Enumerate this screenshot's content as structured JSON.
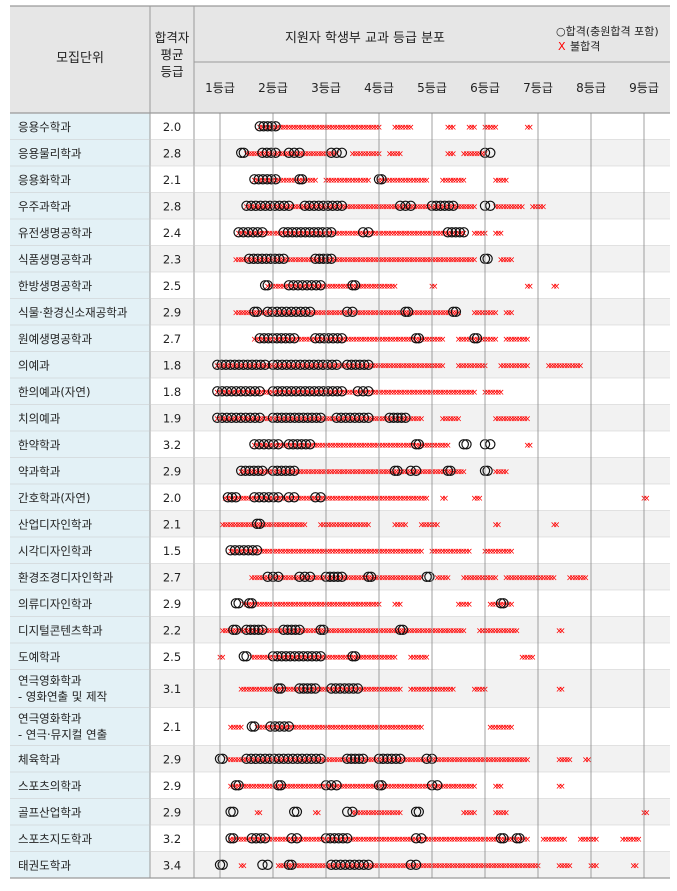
{
  "header": {
    "unit_label": "모집단위",
    "avg_label_lines": [
      "합격자",
      "평균",
      "등급"
    ],
    "chart_title": "지원자 학생부 교과 등급 분포",
    "legend_pass": "○합격(충원합격 포함)",
    "legend_fail_mark": "X",
    "legend_fail": "불합격"
  },
  "colors": {
    "header_bg": "#e6e6e6",
    "name_bg": "#e3f1f6",
    "row_alt_bg": "#f2f2f2",
    "border": "#9a9a9a",
    "fail": "#ff0000",
    "pass": "#111111"
  },
  "chart_data": {
    "type": "scatter",
    "title": "지원자 학생부 교과 등급 분포",
    "x_tick_labels": [
      "1등급",
      "2등급",
      "3등급",
      "4등급",
      "5등급",
      "6등급",
      "7등급",
      "8등급",
      "9등급"
    ],
    "xlim": [
      1,
      9
    ],
    "grid": true,
    "legend": "top-right",
    "series_names": [
      "합격(충원합격 포함)",
      "불합격"
    ],
    "rows": [
      {
        "name": [
          "응용수학과"
        ],
        "avg": "2.0",
        "pass": [
          [
            1.75,
            2.05
          ]
        ],
        "fail": [
          [
            1.75,
            4.0
          ],
          [
            4.3,
            4.6
          ],
          [
            5.3,
            5.4
          ],
          [
            5.7,
            5.8
          ],
          [
            6.0,
            6.2
          ],
          [
            6.8,
            6.85
          ]
        ]
      },
      {
        "name": [
          "응용물리학과"
        ],
        "avg": "2.8",
        "pass": [
          [
            1.4,
            1.45
          ],
          [
            1.8,
            2.05
          ],
          [
            2.3,
            2.5
          ],
          [
            3.1,
            3.3
          ],
          [
            6.0,
            6.1
          ]
        ],
        "fail": [
          [
            1.5,
            3.2
          ],
          [
            3.5,
            4.0
          ],
          [
            4.2,
            4.4
          ],
          [
            5.3,
            5.4
          ],
          [
            5.6,
            6.0
          ]
        ]
      },
      {
        "name": [
          "응용화학과"
        ],
        "avg": "2.1",
        "pass": [
          [
            1.65,
            2.05
          ],
          [
            2.5,
            2.55
          ],
          [
            4.0,
            4.05
          ]
        ],
        "fail": [
          [
            1.65,
            2.8
          ],
          [
            3.0,
            3.8
          ],
          [
            4.0,
            4.9
          ],
          [
            5.2,
            5.6
          ],
          [
            6.2,
            6.4
          ]
        ]
      },
      {
        "name": [
          "우주과학과"
        ],
        "avg": "2.8",
        "pass": [
          [
            1.5,
            2.3
          ],
          [
            2.6,
            3.3
          ],
          [
            4.4,
            4.6
          ],
          [
            5.0,
            5.4
          ],
          [
            6.0,
            6.1
          ]
        ],
        "fail": [
          [
            1.5,
            5.8
          ],
          [
            6.2,
            6.7
          ],
          [
            6.9,
            7.1
          ]
        ]
      },
      {
        "name": [
          "유전생명공학과"
        ],
        "avg": "2.4",
        "pass": [
          [
            1.35,
            1.8
          ],
          [
            2.2,
            3.1
          ],
          [
            3.7,
            3.8
          ],
          [
            5.3,
            5.6
          ]
        ],
        "fail": [
          [
            1.35,
            5.6
          ],
          [
            5.8,
            6.0
          ],
          [
            6.2,
            6.3
          ]
        ]
      },
      {
        "name": [
          "식품생명공학과"
        ],
        "avg": "2.3",
        "pass": [
          [
            1.55,
            2.2
          ],
          [
            2.8,
            3.1
          ],
          [
            6.0,
            6.05
          ]
        ],
        "fail": [
          [
            1.3,
            5.8
          ],
          [
            6.3,
            6.5
          ]
        ]
      },
      {
        "name": [
          "한방생명공학과"
        ],
        "avg": "2.5",
        "pass": [
          [
            1.85,
            1.9
          ],
          [
            2.3,
            2.9
          ],
          [
            3.5,
            3.55
          ]
        ],
        "fail": [
          [
            1.9,
            4.3
          ],
          [
            5.0,
            5.05
          ],
          [
            6.8,
            6.85
          ],
          [
            7.3,
            7.35
          ]
        ]
      },
      {
        "name": [
          "식물·환경신소재공학과"
        ],
        "avg": "2.9",
        "pass": [
          [
            1.65,
            1.7
          ],
          [
            1.9,
            2.7
          ],
          [
            3.4,
            3.5
          ],
          [
            4.5,
            4.55
          ],
          [
            5.4,
            5.45
          ]
        ],
        "fail": [
          [
            1.3,
            5.5
          ],
          [
            5.8,
            6.2
          ],
          [
            6.4,
            6.5
          ]
        ]
      },
      {
        "name": [
          "원예생명공학과"
        ],
        "avg": "2.7",
        "pass": [
          [
            1.75,
            2.4
          ],
          [
            2.8,
            3.3
          ],
          [
            4.7,
            4.75
          ],
          [
            5.8,
            5.85
          ]
        ],
        "fail": [
          [
            1.65,
            5.2
          ],
          [
            5.5,
            6.2
          ],
          [
            6.4,
            6.8
          ]
        ]
      },
      {
        "name": [
          "의예과"
        ],
        "avg": "1.8",
        "pass": [
          [
            0.95,
            1.85
          ],
          [
            2.0,
            3.2
          ],
          [
            3.4,
            3.8
          ]
        ],
        "fail": [
          [
            0.95,
            5.2
          ],
          [
            5.5,
            6.0
          ],
          [
            6.3,
            6.8
          ],
          [
            7.2,
            7.8
          ]
        ]
      },
      {
        "name": [
          "한의예과(자연)"
        ],
        "avg": "1.8",
        "pass": [
          [
            0.95,
            1.75
          ],
          [
            2.0,
            3.3
          ],
          [
            3.6,
            3.8
          ]
        ],
        "fail": [
          [
            0.95,
            5.8
          ],
          [
            6.0,
            6.3
          ]
        ]
      },
      {
        "name": [
          "치의예과"
        ],
        "avg": "1.9",
        "pass": [
          [
            0.95,
            1.75
          ],
          [
            2.0,
            2.9
          ],
          [
            3.2,
            3.8
          ],
          [
            4.2,
            4.5
          ]
        ],
        "fail": [
          [
            0.95,
            4.8
          ],
          [
            5.2,
            5.5
          ],
          [
            6.2,
            6.8
          ]
        ]
      },
      {
        "name": [
          "한약학과"
        ],
        "avg": "3.2",
        "pass": [
          [
            1.65,
            2.1
          ],
          [
            2.3,
            2.7
          ],
          [
            4.7,
            4.75
          ],
          [
            5.6,
            5.65
          ],
          [
            6.0,
            6.1
          ]
        ],
        "fail": [
          [
            1.65,
            5.3
          ],
          [
            6.8,
            6.85
          ]
        ]
      },
      {
        "name": [
          "약과학과"
        ],
        "avg": "2.9",
        "pass": [
          [
            1.4,
            1.8
          ],
          [
            2.0,
            2.4
          ],
          [
            4.3,
            4.35
          ],
          [
            4.6,
            4.7
          ],
          [
            5.3,
            5.35
          ],
          [
            6.0,
            6.05
          ]
        ],
        "fail": [
          [
            1.4,
            5.6
          ],
          [
            6.2,
            6.4
          ]
        ]
      },
      {
        "name": [
          "간호학과(자연)"
        ],
        "avg": "2.0",
        "pass": [
          [
            1.15,
            1.3
          ],
          [
            1.65,
            2.1
          ],
          [
            2.3,
            2.4
          ],
          [
            2.8,
            2.9
          ]
        ],
        "fail": [
          [
            1.1,
            4.9
          ],
          [
            5.2,
            5.25
          ],
          [
            5.8,
            5.9
          ],
          [
            9.0,
            9.05
          ]
        ]
      },
      {
        "name": [
          "산업디자인학과"
        ],
        "avg": "2.1",
        "pass": [
          [
            1.7,
            1.75
          ]
        ],
        "fail": [
          [
            1.05,
            2.6
          ],
          [
            2.9,
            3.8
          ],
          [
            4.3,
            4.5
          ],
          [
            4.8,
            5.1
          ],
          [
            6.2,
            6.25
          ],
          [
            7.3,
            7.35
          ]
        ]
      },
      {
        "name": [
          "시각디자인학과"
        ],
        "avg": "1.5",
        "pass": [
          [
            1.2,
            1.7
          ]
        ],
        "fail": [
          [
            1.2,
            4.8
          ],
          [
            5.0,
            5.7
          ],
          [
            6.0,
            6.5
          ]
        ]
      },
      {
        "name": [
          "환경조경디자인학과"
        ],
        "avg": "2.7",
        "pass": [
          [
            1.9,
            2.1
          ],
          [
            2.5,
            2.7
          ],
          [
            3.0,
            3.3
          ],
          [
            3.8,
            3.85
          ],
          [
            4.9,
            4.95
          ]
        ],
        "fail": [
          [
            1.6,
            4.8
          ],
          [
            5.1,
            5.3
          ],
          [
            5.6,
            6.2
          ],
          [
            6.4,
            7.3
          ],
          [
            7.6,
            7.9
          ]
        ]
      },
      {
        "name": [
          "의류디자인학과"
        ],
        "avg": "2.9",
        "pass": [
          [
            1.3,
            1.35
          ],
          [
            1.55,
            1.6
          ],
          [
            6.3,
            6.35
          ]
        ],
        "fail": [
          [
            1.45,
            4.0
          ],
          [
            4.3,
            4.4
          ],
          [
            5.5,
            5.7
          ],
          [
            6.1,
            6.5
          ]
        ]
      },
      {
        "name": [
          "디지털콘텐츠학과"
        ],
        "avg": "2.2",
        "pass": [
          [
            1.25,
            1.3
          ],
          [
            1.5,
            1.8
          ],
          [
            2.2,
            2.5
          ],
          [
            2.9,
            2.95
          ],
          [
            4.4,
            4.45
          ]
        ],
        "fail": [
          [
            1.05,
            5.6
          ],
          [
            5.9,
            6.6
          ],
          [
            7.4,
            7.45
          ]
        ]
      },
      {
        "name": [
          "도예학과"
        ],
        "avg": "2.5",
        "pass": [
          [
            1.45,
            1.5
          ],
          [
            2.0,
            2.9
          ],
          [
            3.5,
            3.55
          ]
        ],
        "fail": [
          [
            1.0,
            1.05
          ],
          [
            1.6,
            4.3
          ],
          [
            4.6,
            4.9
          ],
          [
            6.7,
            6.9
          ]
        ]
      },
      {
        "name": [
          "연극영화학과",
          " - 영화연출 및 제작"
        ],
        "avg": "3.1",
        "pass": [
          [
            2.1,
            2.15
          ],
          [
            2.5,
            2.8
          ],
          [
            3.1,
            3.6
          ]
        ],
        "fail": [
          [
            1.4,
            4.4
          ],
          [
            4.6,
            5.4
          ],
          [
            5.8,
            6.0
          ],
          [
            7.4,
            7.45
          ]
        ]
      },
      {
        "name": [
          "연극영화학과",
          " - 연극·뮤지컬 연출"
        ],
        "avg": "2.1",
        "pass": [
          [
            1.6,
            1.65
          ],
          [
            1.95,
            2.3
          ]
        ],
        "fail": [
          [
            1.2,
            1.4
          ],
          [
            1.7,
            4.8
          ],
          [
            6.1,
            6.5
          ]
        ]
      },
      {
        "name": [
          "체육학과"
        ],
        "avg": "2.9",
        "pass": [
          [
            1.0,
            1.05
          ],
          [
            1.5,
            2.9
          ],
          [
            3.4,
            3.7
          ],
          [
            4.0,
            4.4
          ],
          [
            4.9,
            5.0
          ]
        ],
        "fail": [
          [
            1.15,
            6.8
          ],
          [
            7.4,
            7.6
          ],
          [
            7.9,
            7.95
          ]
        ]
      },
      {
        "name": [
          "스포츠의학과"
        ],
        "avg": "2.9",
        "pass": [
          [
            1.3,
            1.35
          ],
          [
            2.1,
            2.15
          ],
          [
            3.0,
            3.2
          ],
          [
            4.0,
            4.05
          ],
          [
            5.0,
            5.1
          ]
        ],
        "fail": [
          [
            1.2,
            5.8
          ],
          [
            6.2,
            6.3
          ],
          [
            7.4,
            7.45
          ]
        ]
      },
      {
        "name": [
          "골프산업학과"
        ],
        "avg": "2.9",
        "pass": [
          [
            1.2,
            1.25
          ],
          [
            2.4,
            2.45
          ],
          [
            3.4,
            3.5
          ],
          [
            4.7,
            4.75
          ]
        ],
        "fail": [
          [
            1.7,
            1.75
          ],
          [
            2.8,
            2.85
          ],
          [
            3.5,
            4.4
          ],
          [
            5.6,
            5.8
          ],
          [
            6.2,
            6.4
          ],
          [
            9.0,
            9.05
          ]
        ]
      },
      {
        "name": [
          "스포츠지도학과"
        ],
        "avg": "3.2",
        "pass": [
          [
            1.2,
            1.25
          ],
          [
            1.6,
            1.85
          ],
          [
            2.35,
            2.45
          ],
          [
            3.0,
            3.4
          ],
          [
            4.7,
            4.8
          ],
          [
            6.3,
            6.35
          ],
          [
            6.6,
            6.65
          ]
        ],
        "fail": [
          [
            1.2,
            6.8
          ],
          [
            7.1,
            7.5
          ],
          [
            7.8,
            8.1
          ],
          [
            8.6,
            8.9
          ]
        ]
      },
      {
        "name": [
          "태권도학과"
        ],
        "avg": "3.4",
        "pass": [
          [
            1.0,
            1.05
          ],
          [
            1.8,
            1.9
          ],
          [
            2.3,
            2.35
          ],
          [
            3.1,
            3.8
          ],
          [
            4.6,
            4.7
          ]
        ],
        "fail": [
          [
            1.4,
            1.45
          ],
          [
            2.1,
            7.0
          ],
          [
            7.4,
            7.6
          ],
          [
            8.0,
            8.1
          ],
          [
            8.8,
            8.85
          ]
        ]
      }
    ]
  }
}
